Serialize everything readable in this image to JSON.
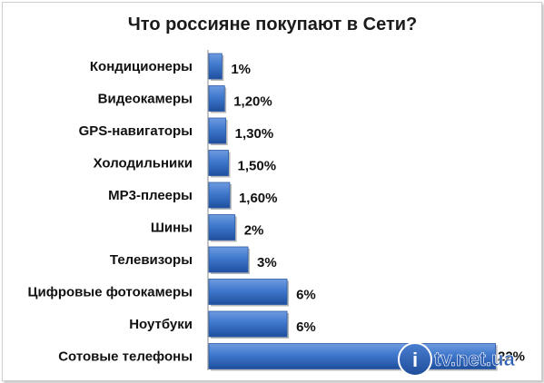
{
  "chart_data": {
    "type": "bar",
    "orientation": "horizontal",
    "title": "Что россияне покупают в Сети?",
    "categories": [
      "Кондиционеры",
      "Видеокамеры",
      "GPS-навигаторы",
      "Холодильники",
      "MP3-плееры",
      "Шины",
      "Телевизоры",
      "Цифровые фотокамеры",
      "Ноутбуки",
      "Сотовые телефоны"
    ],
    "values": [
      1,
      1.2,
      1.3,
      1.5,
      1.6,
      2,
      3,
      6,
      6,
      22
    ],
    "value_labels": [
      "1%",
      "1,20%",
      "1,30%",
      "1,50%",
      "1,60%",
      "2%",
      "3%",
      "6%",
      "6%",
      "22%"
    ],
    "unit": "%",
    "xlim": [
      0,
      23
    ],
    "grid": false,
    "legend": "none",
    "bar_color": "#3a73c9"
  },
  "watermark": {
    "logo": "i",
    "text": "tv.net.ua",
    "color": "#2f5fb5"
  }
}
